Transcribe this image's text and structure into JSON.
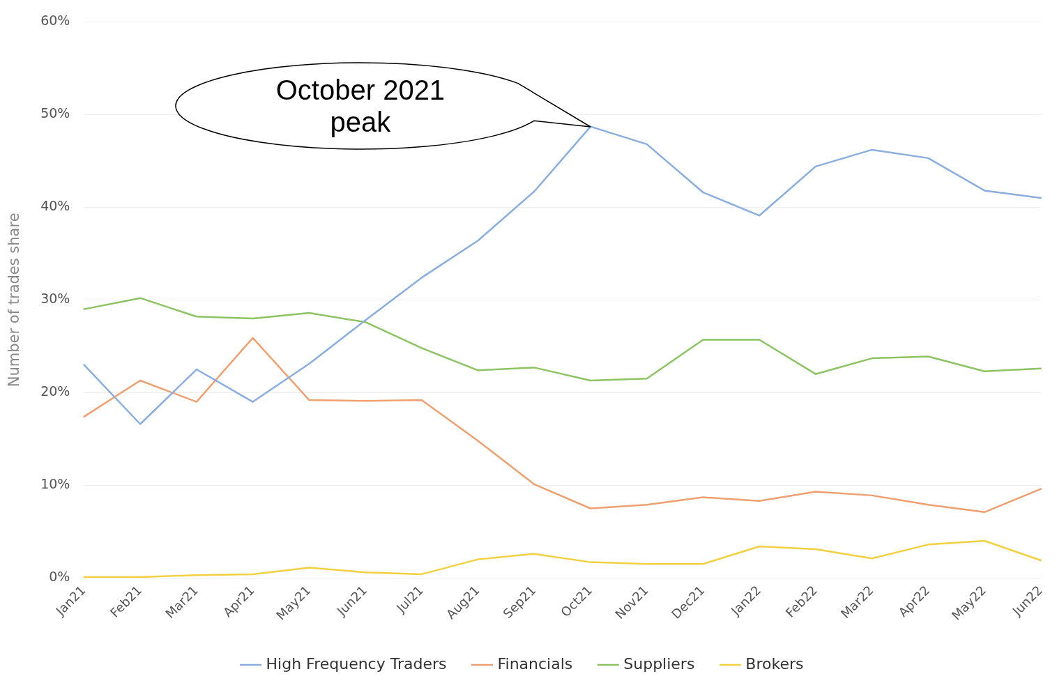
{
  "chart_data": {
    "type": "line",
    "ylabel": "Number of trades share",
    "categories": [
      "Jan21",
      "Feb21",
      "Mar21",
      "Apr21",
      "May21",
      "Jun21",
      "Jul21",
      "Aug21",
      "Sep21",
      "Oct21",
      "Nov21",
      "Dec21",
      "Jan22",
      "Feb22",
      "Mar22",
      "Apr22",
      "May22",
      "Jun22"
    ],
    "series": [
      {
        "name": "High Frequency Traders",
        "color": "#8aaee0",
        "values": [
          23.0,
          16.6,
          22.5,
          19.0,
          23.1,
          27.8,
          32.4,
          36.4,
          41.7,
          48.7,
          46.8,
          41.6,
          39.1,
          44.4,
          46.2,
          45.3,
          41.8,
          41.0
        ]
      },
      {
        "name": "Financials",
        "color": "#f0a070",
        "values": [
          17.4,
          21.3,
          19.0,
          25.9,
          19.2,
          19.1,
          19.2,
          14.8,
          10.1,
          7.5,
          7.9,
          8.7,
          8.3,
          9.3,
          8.9,
          7.9,
          7.1,
          9.6
        ]
      },
      {
        "name": "Suppliers",
        "color": "#8cc464",
        "values": [
          29.0,
          30.2,
          28.2,
          28.0,
          28.6,
          27.6,
          24.8,
          22.4,
          22.7,
          21.3,
          21.5,
          25.7,
          25.7,
          22.0,
          23.7,
          23.9,
          22.3,
          22.6
        ]
      },
      {
        "name": "Brokers",
        "color": "#f2d040",
        "values": [
          0.1,
          0.1,
          0.3,
          0.4,
          1.1,
          0.6,
          0.4,
          2.0,
          2.6,
          1.7,
          1.5,
          1.5,
          3.4,
          3.1,
          2.1,
          3.6,
          4.0,
          1.9
        ]
      }
    ],
    "ylim": [
      0,
      60
    ],
    "yticks": [
      {
        "value": 0,
        "label": "0%"
      },
      {
        "value": 10,
        "label": "10%"
      },
      {
        "value": 20,
        "label": "20%"
      },
      {
        "value": 30,
        "label": "30%"
      },
      {
        "value": 40,
        "label": "40%"
      },
      {
        "value": 50,
        "label": "50%"
      },
      {
        "value": 60,
        "label": "60%"
      }
    ],
    "annotations": [
      {
        "text": "October 2021 peak",
        "x": "Oct21",
        "y": 48.7
      }
    ],
    "grid": "y",
    "legend": "bottom",
    "marker": "none",
    "line_style": "solid"
  }
}
